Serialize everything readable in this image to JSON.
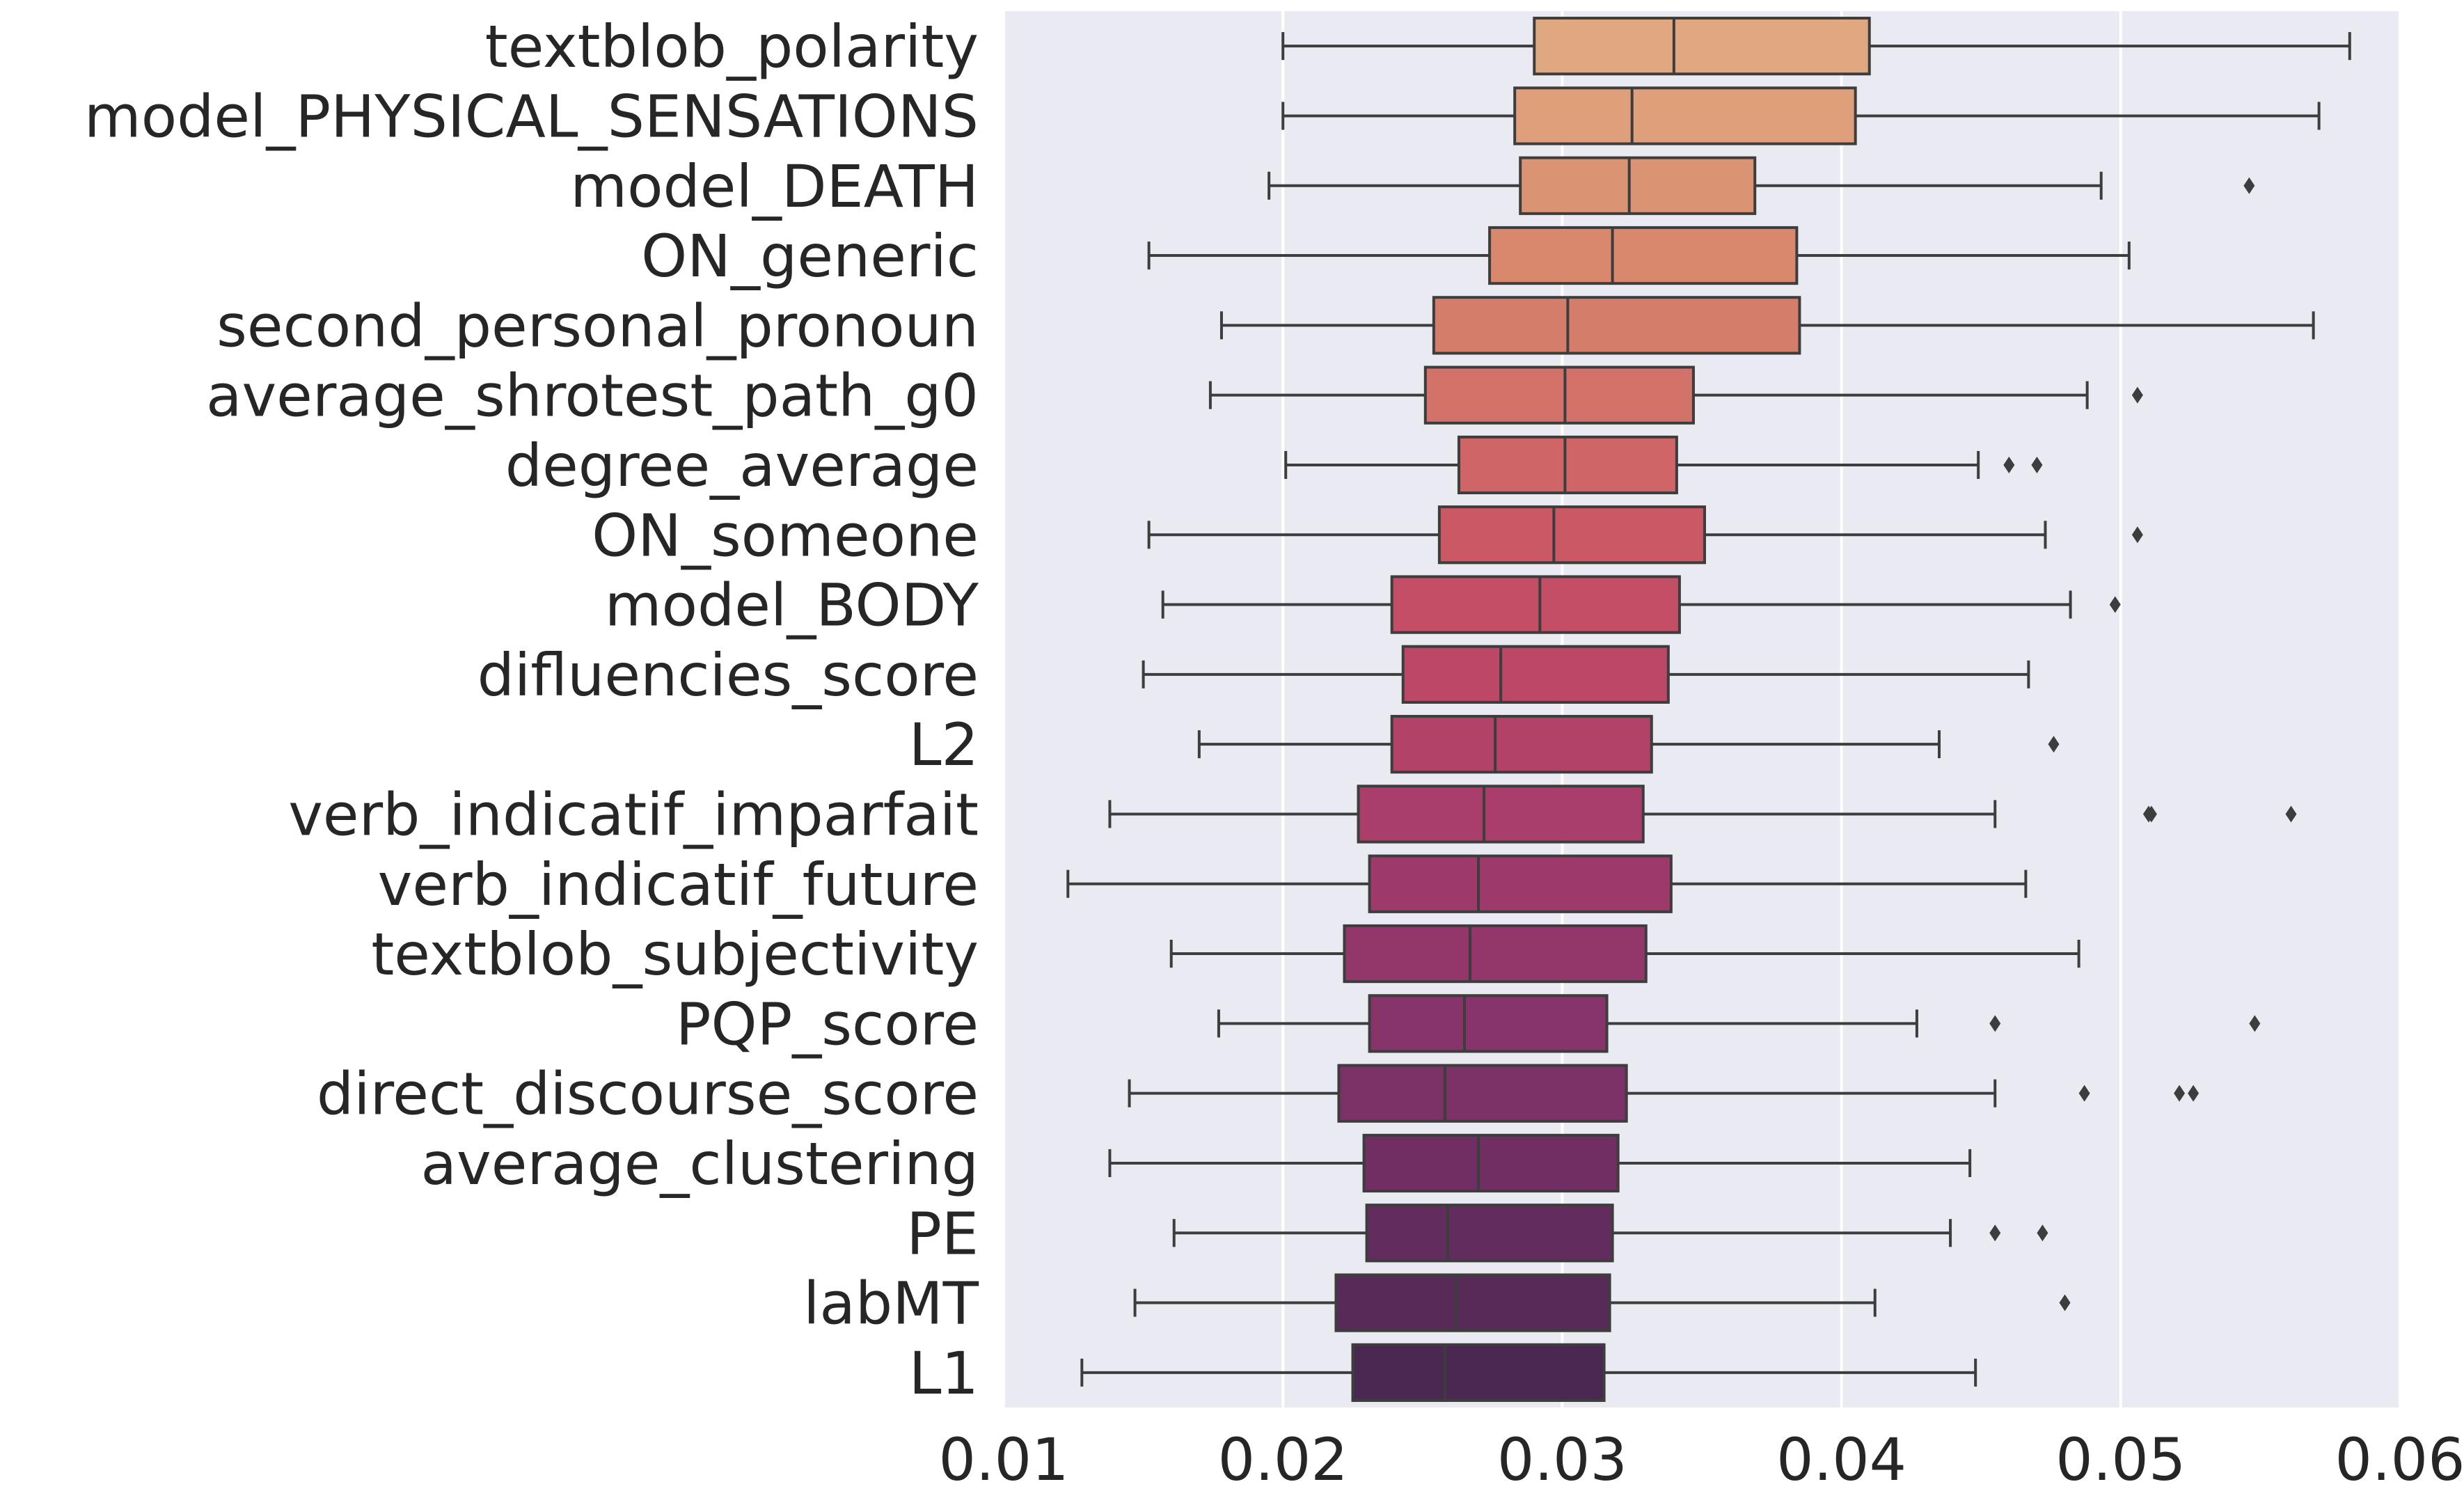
{
  "chart_data": {
    "type": "boxplot",
    "orientation": "horizontal",
    "xlim": [
      0.01,
      0.06
    ],
    "xticks": [
      "0.01",
      "0.02",
      "0.03",
      "0.04",
      "0.05",
      "0.06"
    ],
    "xtick_values": [
      0.01,
      0.02,
      0.03,
      0.04,
      0.05,
      0.06
    ],
    "grid": true,
    "background": "#EAEAF2",
    "categories": [
      "textblob_polarity",
      "model_PHYSICAL_SENSATIONS",
      "model_DEATH",
      "ON_generic",
      "second_personal_pronoun",
      "average_shrotest_path_g0",
      "degree_average",
      "ON_someone",
      "model_BODY",
      "difluencies_score",
      "L2",
      "verb_indicatif_imparfait",
      "verb_indicatif_future",
      "textblob_subjectivity",
      "PQP_score",
      "direct_discourse_score",
      "average_clustering",
      "PE",
      "labMT",
      "L1"
    ],
    "boxes": [
      {
        "whislo": 0.02,
        "q1": 0.029,
        "med": 0.034,
        "q3": 0.041,
        "whishi": 0.0582,
        "fliers": []
      },
      {
        "whislo": 0.02,
        "q1": 0.0283,
        "med": 0.0325,
        "q3": 0.0405,
        "whishi": 0.0571,
        "fliers": []
      },
      {
        "whislo": 0.0195,
        "q1": 0.0285,
        "med": 0.0324,
        "q3": 0.0369,
        "whishi": 0.0493,
        "fliers": [
          0.0546
        ]
      },
      {
        "whislo": 0.0152,
        "q1": 0.0274,
        "med": 0.0318,
        "q3": 0.0384,
        "whishi": 0.0503,
        "fliers": []
      },
      {
        "whislo": 0.0178,
        "q1": 0.0254,
        "med": 0.0302,
        "q3": 0.0385,
        "whishi": 0.0569,
        "fliers": []
      },
      {
        "whislo": 0.0174,
        "q1": 0.0251,
        "med": 0.0301,
        "q3": 0.0347,
        "whishi": 0.0488,
        "fliers": [
          0.0506
        ]
      },
      {
        "whislo": 0.0201,
        "q1": 0.0263,
        "med": 0.0301,
        "q3": 0.0341,
        "whishi": 0.0449,
        "fliers": [
          0.046,
          0.047
        ]
      },
      {
        "whislo": 0.0152,
        "q1": 0.0256,
        "med": 0.0297,
        "q3": 0.0351,
        "whishi": 0.0473,
        "fliers": [
          0.0506
        ]
      },
      {
        "whislo": 0.0157,
        "q1": 0.0239,
        "med": 0.0292,
        "q3": 0.0342,
        "whishi": 0.0482,
        "fliers": [
          0.0498
        ]
      },
      {
        "whislo": 0.015,
        "q1": 0.0243,
        "med": 0.0278,
        "q3": 0.0338,
        "whishi": 0.0467,
        "fliers": []
      },
      {
        "whislo": 0.017,
        "q1": 0.0239,
        "med": 0.0276,
        "q3": 0.0332,
        "whishi": 0.0435,
        "fliers": [
          0.0476
        ]
      },
      {
        "whislo": 0.0138,
        "q1": 0.0227,
        "med": 0.0272,
        "q3": 0.0329,
        "whishi": 0.0455,
        "fliers": [
          0.051,
          0.0511,
          0.0561
        ]
      },
      {
        "whislo": 0.0123,
        "q1": 0.0231,
        "med": 0.027,
        "q3": 0.0339,
        "whishi": 0.0466,
        "fliers": []
      },
      {
        "whislo": 0.016,
        "q1": 0.0222,
        "med": 0.0267,
        "q3": 0.033,
        "whishi": 0.0485,
        "fliers": []
      },
      {
        "whislo": 0.0177,
        "q1": 0.0231,
        "med": 0.0265,
        "q3": 0.0316,
        "whishi": 0.0427,
        "fliers": [
          0.0455,
          0.0548
        ]
      },
      {
        "whislo": 0.0145,
        "q1": 0.022,
        "med": 0.0258,
        "q3": 0.0323,
        "whishi": 0.0455,
        "fliers": [
          0.0487,
          0.0521,
          0.0526
        ]
      },
      {
        "whislo": 0.0138,
        "q1": 0.0229,
        "med": 0.027,
        "q3": 0.032,
        "whishi": 0.0446,
        "fliers": []
      },
      {
        "whislo": 0.0161,
        "q1": 0.023,
        "med": 0.0259,
        "q3": 0.0318,
        "whishi": 0.0439,
        "fliers": [
          0.0455,
          0.0472
        ]
      },
      {
        "whislo": 0.0147,
        "q1": 0.0219,
        "med": 0.0262,
        "q3": 0.0317,
        "whishi": 0.0412,
        "fliers": [
          0.048
        ]
      },
      {
        "whislo": 0.0128,
        "q1": 0.0225,
        "med": 0.0258,
        "q3": 0.0315,
        "whishi": 0.0448,
        "fliers": []
      }
    ],
    "colors": [
      "#E0A880",
      "#DE9F7A",
      "#DB9473",
      "#D9886E",
      "#D57D6B",
      "#D27268",
      "#CF6566",
      "#CA5965",
      "#C34E66",
      "#BC4767",
      "#B34268",
      "#A93E6A",
      "#9E3A6B",
      "#93376B",
      "#87346A",
      "#7C3167",
      "#702E63",
      "#632C5E",
      "#572A58",
      "#4B2852"
    ],
    "box_edge_color": "#3D3D3D"
  }
}
